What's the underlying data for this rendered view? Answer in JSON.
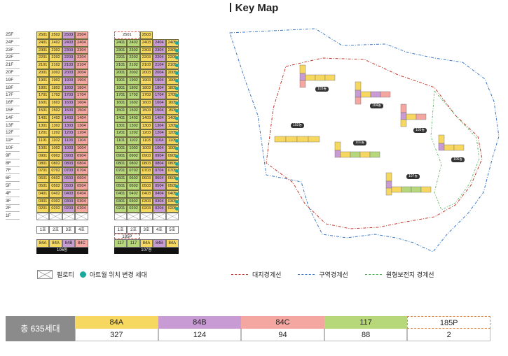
{
  "page": {
    "title": "Key Map"
  },
  "colors": {
    "type_84A": "#f6d860",
    "type_84B": "#c99bd4",
    "type_84C": "#f4a6a0",
    "type_117": "#b6d77a",
    "type_185P": "#ffffff",
    "relocation_dot": "#1aa89a",
    "site_boundary": "#c0392b",
    "zone_boundary": "#3a78c2",
    "preservation_boundary": "#4caf50"
  },
  "floors": [
    "25F",
    "24F",
    "23F",
    "22F",
    "21F",
    "20F",
    "19F",
    "18F",
    "17F",
    "16F",
    "15F",
    "14F",
    "13F",
    "12F",
    "11F",
    "10F",
    "9F",
    "8F",
    "7F",
    "6F",
    "5F",
    "4F",
    "3F",
    "2F",
    "1F"
  ],
  "buildings": [
    {
      "name": "106동",
      "lines": [
        {
          "label": "1호",
          "type": "84A",
          "suffix": "01"
        },
        {
          "label": "2호",
          "type": "84A",
          "suffix": "02"
        },
        {
          "label": "3호",
          "type": "84B",
          "suffix": "03"
        },
        {
          "label": "4호",
          "type": "84C",
          "suffix": "04"
        }
      ],
      "top_floor": 25,
      "relocated": []
    },
    {
      "name": "107동",
      "lines": [
        {
          "label": "1호",
          "type": "117",
          "suffix": "01"
        },
        {
          "label": "2호",
          "type": "117",
          "suffix": "02"
        },
        {
          "label": "3호",
          "type": "84A",
          "suffix": "03"
        },
        {
          "label": "4호",
          "type": "84B",
          "suffix": "04"
        },
        {
          "label": "5호",
          "type": "84A",
          "suffix": "05"
        }
      ],
      "top_floor": 24,
      "penthouse": {
        "label": "185P",
        "units": [
          "2501",
          "2503"
        ]
      },
      "relocated": [
        "05"
      ]
    }
  ],
  "legend": {
    "piloti": "필로티",
    "atrium": "아트월 위치 변경 세대",
    "site_boundary": "대지경계선",
    "zone_boundary": "구역경계선",
    "preservation_boundary": "원형보전지 경계선"
  },
  "summary": {
    "total_label": "총 635세대",
    "items": [
      {
        "type": "84A",
        "count": "327"
      },
      {
        "type": "84B",
        "count": "124"
      },
      {
        "type": "84C",
        "count": "94"
      },
      {
        "type": "117",
        "count": "88"
      },
      {
        "type": "185P",
        "count": "2"
      }
    ]
  },
  "site_map": {
    "buildings": [
      {
        "name": "103동"
      },
      {
        "name": "104동"
      },
      {
        "name": "105동"
      },
      {
        "name": "102동"
      },
      {
        "name": "101동"
      },
      {
        "name": "106동"
      },
      {
        "name": "107동"
      }
    ]
  }
}
